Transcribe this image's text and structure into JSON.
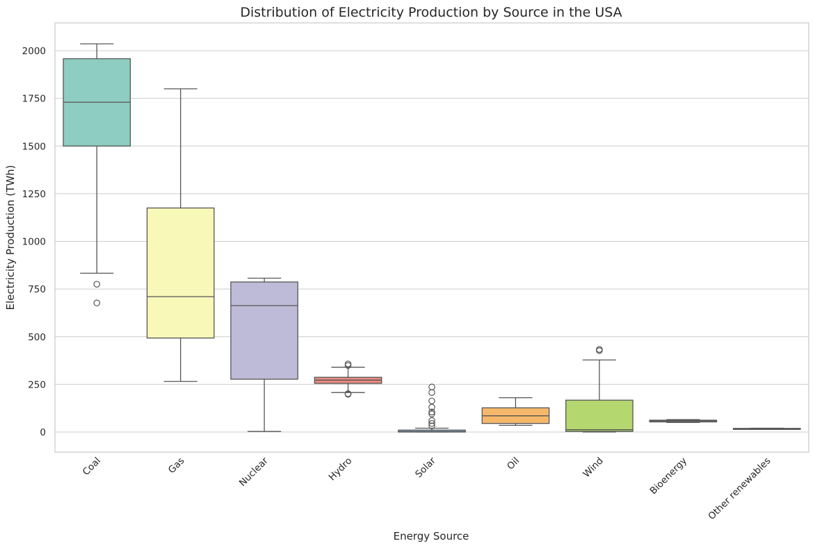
{
  "chart_data": {
    "type": "box",
    "title": "Distribution of Electricity Production by Source in the USA",
    "xlabel": "Energy Source",
    "ylabel": "Electricity Production (TWh)",
    "ylim": [
      -100,
      2130
    ],
    "yticks": [
      0,
      250,
      500,
      750,
      1000,
      1250,
      1500,
      1750,
      2000
    ],
    "grid": "horizontal",
    "categories": [
      "Coal",
      "Gas",
      "Nuclear",
      "Hydro",
      "Solar",
      "Oil",
      "Wind",
      "Bioenergy",
      "Other renewables"
    ],
    "boxes": [
      {
        "category": "Coal",
        "color": "#8ecdc1",
        "whisker_low": 833,
        "q1": 1500,
        "median": 1730,
        "q3": 1958,
        "whisker_high": 2036,
        "outliers": [
          775,
          677
        ]
      },
      {
        "category": "Gas",
        "color": "#f8f8b9",
        "whisker_low": 265,
        "q1": 493,
        "median": 710,
        "q3": 1175,
        "whisker_high": 1800,
        "outliers": []
      },
      {
        "category": "Nuclear",
        "color": "#bebbd8",
        "whisker_low": 3,
        "q1": 277,
        "median": 663,
        "q3": 787,
        "whisker_high": 807,
        "outliers": []
      },
      {
        "category": "Hydro",
        "color": "#e98a80",
        "whisker_low": 207,
        "q1": 255,
        "median": 272,
        "q3": 287,
        "whisker_high": 340,
        "outliers": [
          349,
          357,
          201,
          198
        ]
      },
      {
        "category": "Solar",
        "color": "#89b1ce",
        "whisker_low": 0,
        "q1": 0,
        "median": 2,
        "q3": 10,
        "whisker_high": 20,
        "outliers": [
          236,
          207,
          163,
          130,
          105,
          95,
          60,
          45,
          32
        ]
      },
      {
        "category": "Oil",
        "color": "#f5b86a",
        "whisker_low": 35,
        "q1": 45,
        "median": 85,
        "q3": 127,
        "whisker_high": 180,
        "outliers": []
      },
      {
        "category": "Wind",
        "color": "#b4d770",
        "whisker_low": 0,
        "q1": 3,
        "median": 12,
        "q3": 167,
        "whisker_high": 378,
        "outliers": [
          427,
          433
        ]
      },
      {
        "category": "Bioenergy",
        "color": "#f5c3dc",
        "whisker_low": 50,
        "q1": 53,
        "median": 58,
        "q3": 62,
        "whisker_high": 65,
        "outliers": []
      },
      {
        "category": "Other renewables",
        "color": "#d2d2d2",
        "whisker_low": 15,
        "q1": 16,
        "median": 17,
        "q3": 19,
        "whisker_high": 20,
        "outliers": []
      }
    ]
  }
}
